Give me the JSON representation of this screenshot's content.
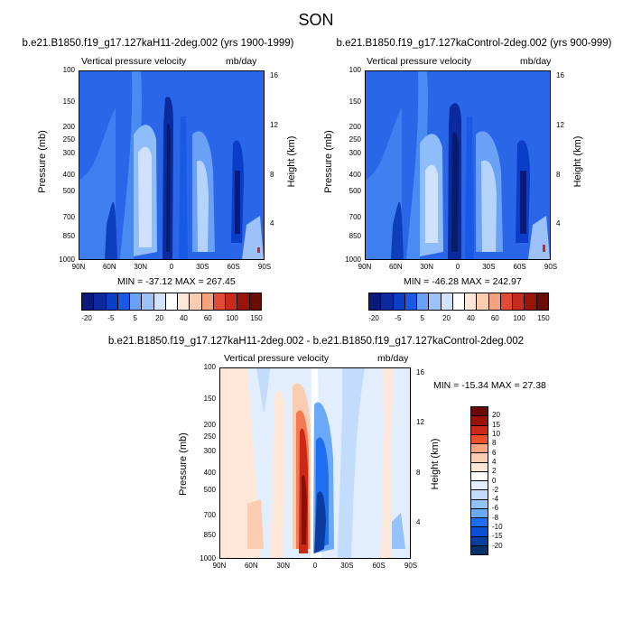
{
  "figure": {
    "title": "SON"
  },
  "colors": {
    "anomaly_palette": [
      "#08306b",
      "#0a3e9e",
      "#0b4fd6",
      "#1f6ef0",
      "#3d8bf5",
      "#6aa8f8",
      "#93c3fa",
      "#c3dcfc",
      "#e2eefd",
      "#ffffff",
      "#fde7d8",
      "#fbcdb0",
      "#f9a580",
      "#f47a54",
      "#e9502e",
      "#c92a16",
      "#9a1208",
      "#6a0a04"
    ],
    "total_palette": [
      "#0a1a7a",
      "#0b2a9e",
      "#0b3ec8",
      "#1a58e6",
      "#3a78f2",
      "#6aa0f6",
      "#9dc2fa",
      "#d2e4fd",
      "#ffffff",
      "#fde7d8",
      "#fbcdb0",
      "#f5a37f",
      "#ed7757",
      "#e34a33",
      "#c62b1e",
      "#9a1409",
      "#6a0b04"
    ]
  },
  "chart_data": [
    {
      "type": "heatmap",
      "title": "b.e21.B1850.f19_g17.127kaH11-2deg.002 (yrs 1900-1999)",
      "left_label": "Vertical pressure velocity",
      "right_label": "mb/day",
      "xlabel": "",
      "ylabel": "Pressure (mb)",
      "y2label": "Height (km)",
      "x_ticks": [
        "90N",
        "60N",
        "30N",
        "0",
        "30S",
        "60S",
        "90S"
      ],
      "y_ticks": [
        "100",
        "150",
        "200",
        "250",
        "300",
        "400",
        "500",
        "700",
        "850",
        "1000"
      ],
      "y2_ticks": [
        "16",
        "12",
        "8",
        "4"
      ],
      "min": -37.12,
      "max": 267.45,
      "stats_text": "MIN = -37.12  MAX = 267.45",
      "colorbar_labels": [
        "-20",
        "-5",
        "5",
        "20",
        "40",
        "60",
        "100",
        "150"
      ]
    },
    {
      "type": "heatmap",
      "title": "b.e21.B1850.f19_g17.127kaControl-2deg.002 (yrs 900-999)",
      "left_label": "Vertical pressure velocity",
      "right_label": "mb/day",
      "xlabel": "",
      "ylabel": "Pressure (mb)",
      "y2label": "Height (km)",
      "x_ticks": [
        "90N",
        "60N",
        "30N",
        "0",
        "30S",
        "60S",
        "90S"
      ],
      "y_ticks": [
        "100",
        "150",
        "200",
        "250",
        "300",
        "400",
        "500",
        "700",
        "850",
        "1000"
      ],
      "y2_ticks": [
        "16",
        "12",
        "8",
        "4"
      ],
      "min": -46.28,
      "max": 242.97,
      "stats_text": "MIN = -46.28  MAX = 242.97",
      "colorbar_labels": [
        "-20",
        "-5",
        "5",
        "20",
        "40",
        "60",
        "100",
        "150"
      ]
    },
    {
      "type": "heatmap",
      "title": "b.e21.B1850.f19_g17.127kaH11-2deg.002 - b.e21.B1850.f19_g17.127kaControl-2deg.002",
      "left_label": "Vertical pressure velocity",
      "right_label": "mb/day",
      "xlabel": "",
      "ylabel": "Pressure (mb)",
      "y2label": "Height (km)",
      "x_ticks": [
        "90N",
        "60N",
        "30N",
        "0",
        "30S",
        "60S",
        "90S"
      ],
      "y_ticks": [
        "100",
        "150",
        "200",
        "250",
        "300",
        "400",
        "500",
        "700",
        "850",
        "1000"
      ],
      "y2_ticks": [
        "16",
        "12",
        "8",
        "4"
      ],
      "min": -15.34,
      "max": 27.38,
      "stats_text": "MIN = -15.34  MAX =  27.38",
      "colorbar_labels": [
        "20",
        "15",
        "10",
        "8",
        "6",
        "4",
        "2",
        "0",
        "-2",
        "-4",
        "-6",
        "-8",
        "-10",
        "-15",
        "-20"
      ]
    }
  ]
}
